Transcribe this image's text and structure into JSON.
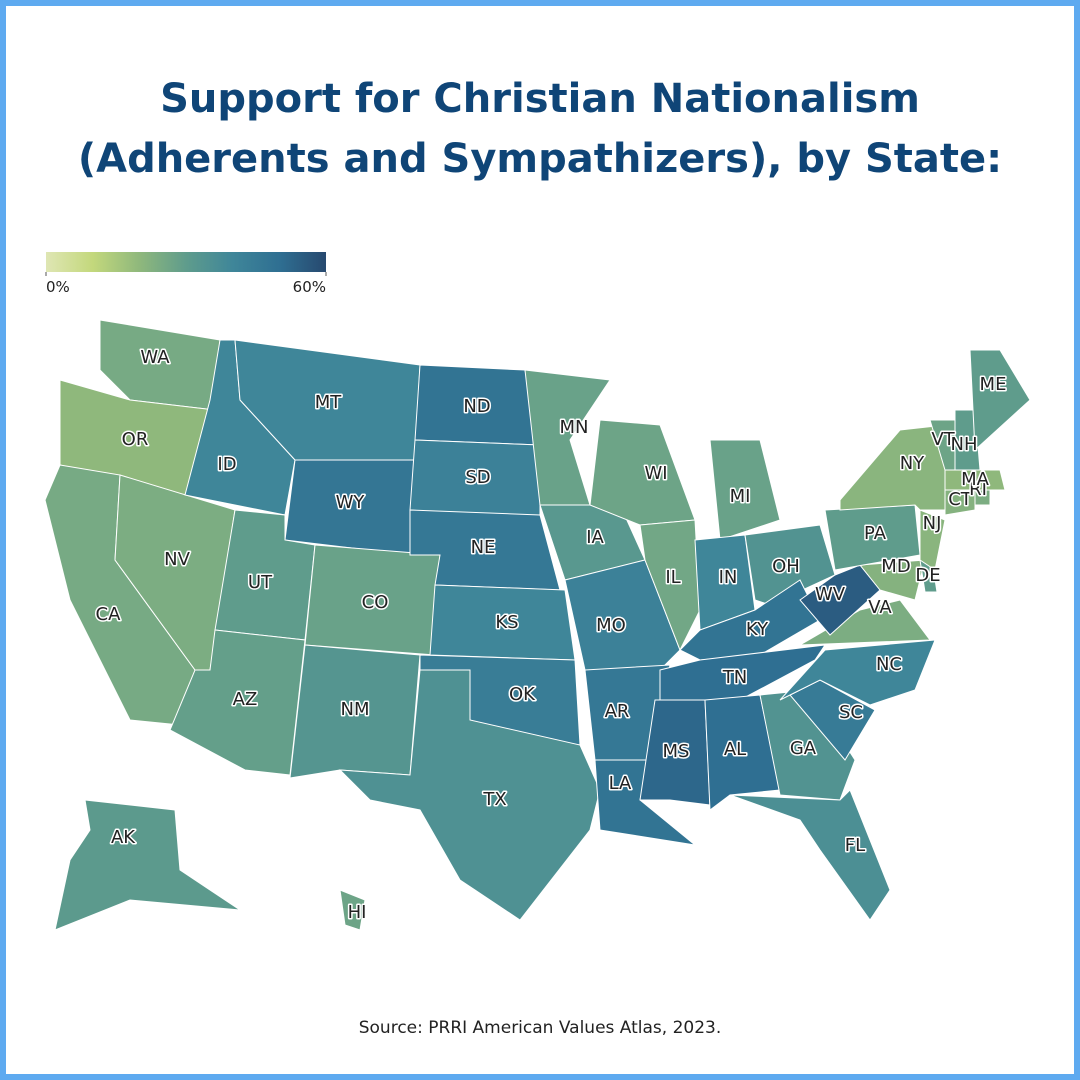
{
  "chart_data": {
    "type": "choropleth",
    "title": "Support for Christian Nationalism",
    "subtitle": "(Adherents and Sympathizers), by State:",
    "source": "Source: PRRI American Values Atlas, 2023.",
    "categories": [
      "WA",
      "OR",
      "CA",
      "NV",
      "ID",
      "MT",
      "WY",
      "UT",
      "CO",
      "AZ",
      "NM",
      "ND",
      "SD",
      "NE",
      "KS",
      "OK",
      "TX",
      "MN",
      "IA",
      "MO",
      "AR",
      "LA",
      "WI",
      "IL",
      "MI",
      "IN",
      "OH",
      "KY",
      "TN",
      "MS",
      "AL",
      "GA",
      "FL",
      "SC",
      "NC",
      "VA",
      "WV",
      "MD",
      "DE",
      "PA",
      "NJ",
      "NY",
      "CT",
      "RI",
      "MA",
      "VT",
      "NH",
      "ME",
      "AK",
      "HI"
    ],
    "values": [
      25,
      20,
      25,
      24,
      40,
      40,
      47,
      30,
      28,
      29,
      33,
      48,
      42,
      46,
      40,
      44,
      35,
      28,
      32,
      42,
      46,
      48,
      27,
      26,
      28,
      40,
      34,
      48,
      50,
      52,
      50,
      34,
      36,
      45,
      40,
      24,
      55,
      22,
      30,
      30,
      21,
      21,
      22,
      24,
      20,
      27,
      30,
      30,
      31,
      27
    ],
    "scale": {
      "lim": [
        0,
        60
      ],
      "ticks": [
        {
          "value": 0,
          "label": "0%"
        },
        {
          "value": 60,
          "label": "60%"
        }
      ],
      "colors": [
        "#dfe6b4",
        "#c3d87c",
        "#8fb87c",
        "#5f9c8c",
        "#3f8699",
        "#2f6f92",
        "#27496f"
      ]
    }
  }
}
